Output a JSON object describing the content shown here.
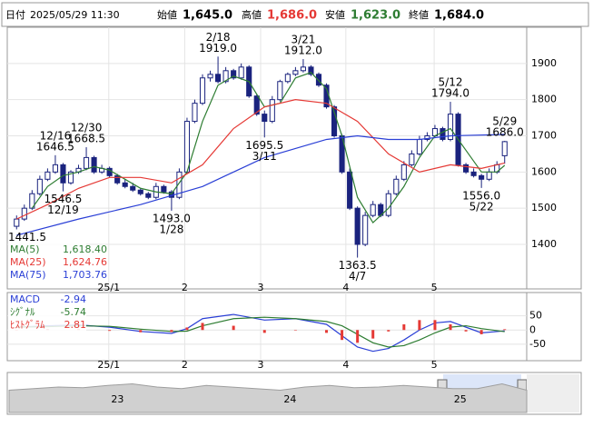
{
  "header": {
    "date_label": "日付",
    "datetime": "2025/05/29 11:30",
    "open_label": "始値",
    "open": "1,645.0",
    "high_label": "高値",
    "high": "1,686.0",
    "low_label": "安値",
    "low": "1,623.0",
    "close_label": "終値",
    "close": "1,684.0"
  },
  "chart_data": [
    {
      "type": "candlestick",
      "open": [
        1450,
        1470,
        1500,
        1540,
        1580,
        1600,
        1620,
        1570,
        1600,
        1610,
        1640,
        1600,
        1610,
        1590,
        1570,
        1560,
        1550,
        1540,
        1530,
        1560,
        1545,
        1530,
        1600,
        1740,
        1790,
        1860,
        1870,
        1850,
        1880,
        1860,
        1890,
        1810,
        1760,
        1740,
        1800,
        1850,
        1870,
        1880,
        1890,
        1870,
        1840,
        1780,
        1700,
        1600,
        1500,
        1400,
        1480,
        1510,
        1480,
        1540,
        1580,
        1620,
        1650,
        1690,
        1700,
        1720,
        1690,
        1760,
        1620,
        1600,
        1590,
        1580,
        1600,
        1645
      ],
      "high": [
        1480,
        1510,
        1550,
        1590,
        1610,
        1646.5,
        1625,
        1605,
        1620,
        1668.5,
        1645,
        1620,
        1615,
        1595,
        1580,
        1570,
        1555,
        1545,
        1570,
        1565,
        1550,
        1610,
        1750,
        1800,
        1870,
        1880,
        1919,
        1890,
        1885,
        1900,
        1895,
        1815,
        1770,
        1810,
        1855,
        1875,
        1890,
        1912,
        1895,
        1875,
        1845,
        1785,
        1705,
        1610,
        1505,
        1490,
        1520,
        1515,
        1550,
        1590,
        1630,
        1660,
        1700,
        1710,
        1730,
        1725,
        1794,
        1765,
        1625,
        1610,
        1595,
        1610,
        1630,
        1686
      ],
      "low": [
        1441.5,
        1465,
        1495,
        1535,
        1575,
        1595,
        1546.5,
        1565,
        1595,
        1605,
        1595,
        1595,
        1585,
        1565,
        1555,
        1545,
        1535,
        1525,
        1525,
        1540,
        1493,
        1525,
        1595,
        1735,
        1785,
        1850,
        1845,
        1845,
        1855,
        1855,
        1805,
        1755,
        1695.5,
        1735,
        1795,
        1845,
        1865,
        1875,
        1865,
        1835,
        1775,
        1695,
        1595,
        1495,
        1363.5,
        1395,
        1475,
        1475,
        1475,
        1535,
        1575,
        1615,
        1645,
        1685,
        1695,
        1685,
        1685,
        1615,
        1595,
        1585,
        1556,
        1575,
        1595,
        1623
      ],
      "close": [
        1470,
        1500,
        1540,
        1580,
        1600,
        1620,
        1570,
        1600,
        1610,
        1640,
        1600,
        1610,
        1590,
        1570,
        1560,
        1550,
        1540,
        1530,
        1560,
        1545,
        1530,
        1600,
        1740,
        1790,
        1860,
        1870,
        1850,
        1880,
        1860,
        1890,
        1810,
        1760,
        1740,
        1800,
        1850,
        1870,
        1880,
        1890,
        1870,
        1840,
        1780,
        1700,
        1600,
        1500,
        1400,
        1480,
        1510,
        1480,
        1540,
        1580,
        1620,
        1650,
        1690,
        1700,
        1720,
        1690,
        1760,
        1620,
        1600,
        1590,
        1580,
        1600,
        1620,
        1684
      ],
      "up_color": "#ffffff",
      "down_color": "#1a237e",
      "edge_color": "#1a237e",
      "ylim": [
        1277,
        2000
      ],
      "yticks": [
        1400,
        1500,
        1600,
        1700,
        1800,
        1900
      ],
      "grid": true,
      "xlim": [
        -0.5,
        63.5
      ],
      "xticks": [
        {
          "value": 11.9,
          "label": "25/1"
        },
        {
          "value": 21.7,
          "label": "2"
        },
        {
          "value": 31.5,
          "label": "3"
        },
        {
          "value": 42.5,
          "label": "4"
        },
        {
          "value": 53.9,
          "label": "5"
        }
      ],
      "series": [
        {
          "name": "MA(5)",
          "color": "#2e7d32",
          "value_label": "1,618.40",
          "x": [
            2,
            4,
            6,
            8,
            10,
            12,
            14,
            16,
            18,
            20,
            22,
            24,
            26,
            28,
            30,
            32,
            34,
            36,
            38,
            40,
            42,
            44,
            46,
            48,
            50,
            52,
            54,
            56,
            58,
            60,
            62,
            63
          ],
          "values": [
            1500,
            1560,
            1590,
            1600,
            1615,
            1605,
            1580,
            1555,
            1545,
            1540,
            1600,
            1740,
            1840,
            1865,
            1850,
            1780,
            1790,
            1860,
            1875,
            1830,
            1700,
            1530,
            1460,
            1500,
            1560,
            1640,
            1700,
            1720,
            1660,
            1600,
            1600,
            1618.4
          ]
        },
        {
          "name": "MA(25)",
          "color": "#e53935",
          "value_label": "1,624.76",
          "x": [
            0,
            4,
            8,
            12,
            16,
            20,
            24,
            28,
            32,
            36,
            40,
            44,
            48,
            52,
            56,
            60,
            63
          ],
          "values": [
            1470,
            1510,
            1555,
            1585,
            1585,
            1570,
            1620,
            1720,
            1780,
            1800,
            1790,
            1740,
            1650,
            1600,
            1620,
            1610,
            1624.76
          ]
        },
        {
          "name": "MA(75)",
          "color": "#2a3fd6",
          "value_label": "1,703.76",
          "x": [
            0,
            8,
            16,
            24,
            32,
            40,
            44,
            48,
            52,
            56,
            63
          ],
          "values": [
            1425,
            1470,
            1510,
            1560,
            1640,
            1690,
            1700,
            1690,
            1690,
            1700,
            1703.76
          ]
        }
      ],
      "annotations": [
        {
          "x": 0,
          "position": "below",
          "price": 1441.5
        },
        {
          "x": 5,
          "position": "above",
          "date": "12/16",
          "price": 1646.5
        },
        {
          "x": 6,
          "position": "below",
          "date": "12/19",
          "price": 1546.5
        },
        {
          "x": 9,
          "position": "above",
          "date": "12/30",
          "price": 1668.5
        },
        {
          "x": 20,
          "position": "below",
          "date": "1/28",
          "price": {
            "value": 1493.0,
            "label": "1493.0"
          }
        },
        {
          "x": 26,
          "position": "above",
          "date": "2/18",
          "price": {
            "value": 1919.0,
            "label": "1919.0"
          }
        },
        {
          "x": 32,
          "position": "below",
          "date": "3/11",
          "price": 1695.5
        },
        {
          "x": 37,
          "position": "above",
          "date": "3/21",
          "price": {
            "value": 1912.0,
            "label": "1912.0"
          }
        },
        {
          "x": 44,
          "position": "below",
          "date": "4/7",
          "price": 1363.5
        },
        {
          "x": 56,
          "position": "above",
          "date": "5/12",
          "price": {
            "value": 1794.0,
            "label": "1794.0"
          }
        },
        {
          "x": 60,
          "position": "below",
          "date": "5/22",
          "price": {
            "value": 1556.0,
            "label": "1556.0"
          }
        },
        {
          "x": 63,
          "position": "above",
          "date": "5/29",
          "price": {
            "value": 1686.0,
            "label": "1686.0"
          }
        }
      ]
    },
    {
      "type": "macd",
      "ylim": [
        -108,
        132
      ],
      "yticks": [
        50,
        0,
        -50
      ],
      "xlim": [
        -0.5,
        63.5
      ],
      "x": [
        0,
        4,
        8,
        12,
        16,
        20,
        22,
        24,
        28,
        32,
        36,
        40,
        42,
        44,
        46,
        48,
        50,
        52,
        54,
        56,
        58,
        60,
        63
      ],
      "series": [
        {
          "name": "MACD",
          "color": "#2a3fd6",
          "value_label": "-2.94",
          "values": [
            10,
            15,
            18,
            10,
            -5,
            -12,
            5,
            40,
            55,
            35,
            40,
            20,
            -20,
            -60,
            -75,
            -65,
            -35,
            0,
            25,
            30,
            10,
            -10,
            -2.94
          ]
        },
        {
          "name": "ｼｸﾞﾅﾙ",
          "color": "#2e7d32",
          "value_label": "-5.74",
          "values": [
            10,
            12,
            15,
            13,
            3,
            -5,
            -4,
            15,
            40,
            45,
            40,
            30,
            15,
            -15,
            -45,
            -60,
            -55,
            -35,
            -10,
            10,
            15,
            5,
            -5.74
          ]
        },
        {
          "name": "ﾋｽﾄｸﾞﾗﾑ",
          "color": "#e53935",
          "value_label": "2.81",
          "kind": "bar",
          "values": [
            0,
            3,
            3,
            -3,
            -8,
            -7,
            9,
            25,
            15,
            -10,
            0,
            -10,
            -35,
            -45,
            -30,
            -5,
            20,
            35,
            35,
            20,
            -5,
            -15,
            2.81
          ]
        }
      ]
    },
    {
      "type": "area",
      "color": "#9e9e9e",
      "ylim": [
        1000,
        2200
      ],
      "xlim": [
        0,
        21
      ],
      "values": [
        1700,
        1750,
        1800,
        1780,
        1850,
        1900,
        1800,
        1750,
        1850,
        1800,
        1750,
        1700,
        1800,
        1850,
        1780,
        1800,
        1850,
        1800,
        1750,
        1750,
        1900,
        1700
      ],
      "xticks": [
        {
          "value": 4.4,
          "label": "23"
        },
        {
          "value": 11.4,
          "label": "24"
        },
        {
          "value": 18.3,
          "label": "25"
        }
      ]
    }
  ]
}
